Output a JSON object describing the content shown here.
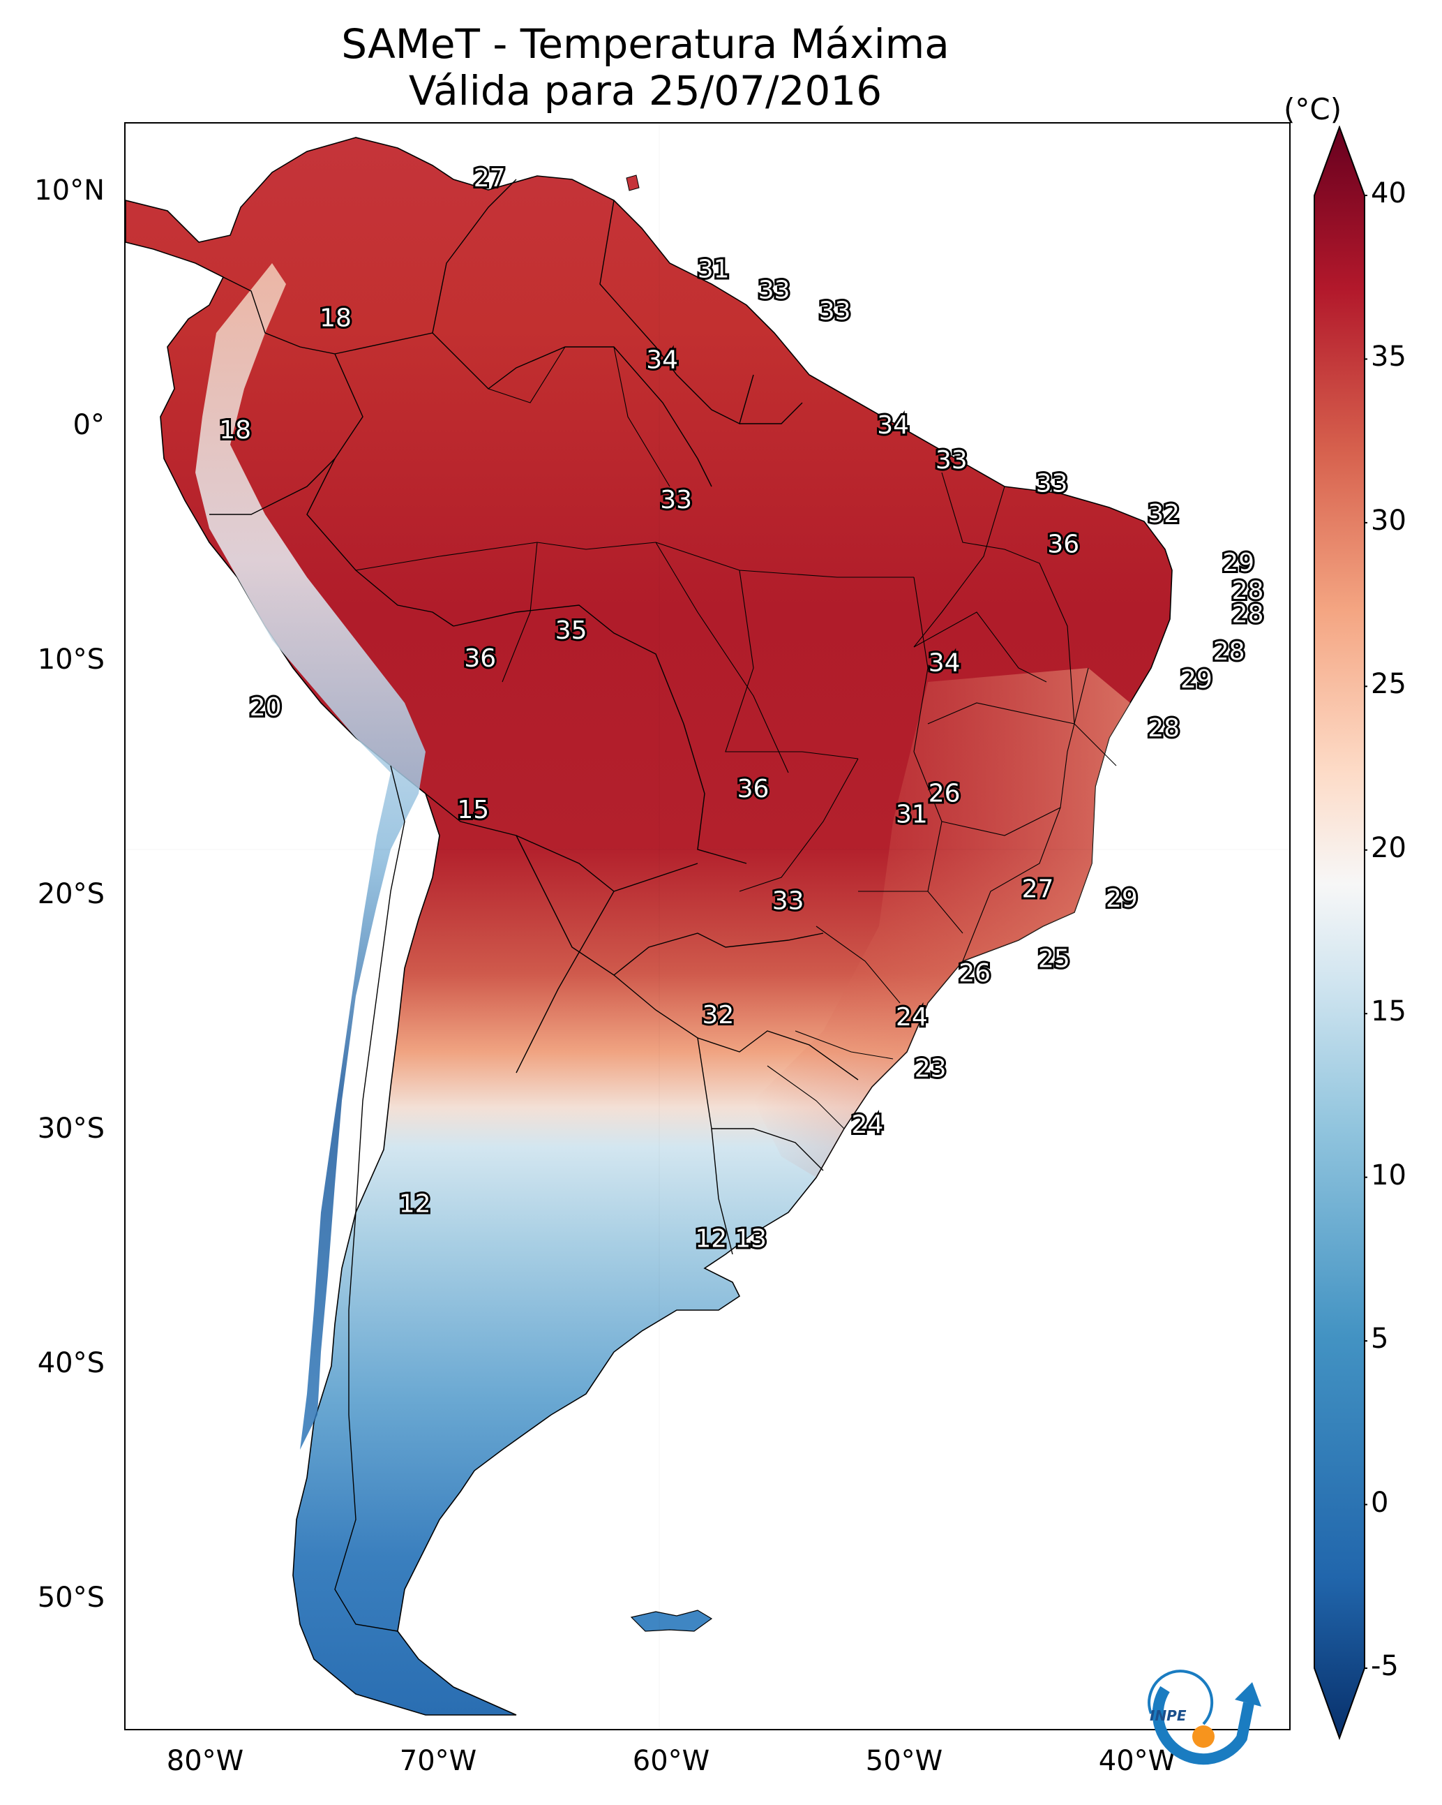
{
  "title": {
    "line1": "SAMeT - Temperatura Máxima",
    "line2": "Válida para 25/07/2016"
  },
  "map": {
    "region": "South America",
    "lon_range": [
      -83,
      -33
    ],
    "lat_range": [
      -56,
      13
    ],
    "lat_ticks": [
      "10°N",
      "0°",
      "10°S",
      "20°S",
      "30°S",
      "40°S",
      "50°S"
    ],
    "lon_ticks": [
      "80°W",
      "70°W",
      "60°W",
      "50°W",
      "40°W"
    ],
    "station_labels": [
      {
        "value": "27",
        "lon": -67.4,
        "lat": 10.6
      },
      {
        "value": "18",
        "lon": -74.0,
        "lat": 4.6
      },
      {
        "value": "31",
        "lon": -57.8,
        "lat": 6.7
      },
      {
        "value": "33",
        "lon": -55.2,
        "lat": 5.8
      },
      {
        "value": "33",
        "lon": -52.6,
        "lat": 4.9
      },
      {
        "value": "34",
        "lon": -60.0,
        "lat": 2.8
      },
      {
        "value": "18",
        "lon": -78.3,
        "lat": -0.2
      },
      {
        "value": "34",
        "lon": -50.1,
        "lat": 0.0
      },
      {
        "value": "33",
        "lon": -47.6,
        "lat": -1.5
      },
      {
        "value": "33",
        "lon": -43.3,
        "lat": -2.5
      },
      {
        "value": "33",
        "lon": -59.4,
        "lat": -3.2
      },
      {
        "value": "32",
        "lon": -38.5,
        "lat": -3.8
      },
      {
        "value": "36",
        "lon": -42.8,
        "lat": -5.1
      },
      {
        "value": "29",
        "lon": -35.3,
        "lat": -5.9
      },
      {
        "value": "28",
        "lon": -34.9,
        "lat": -7.1
      },
      {
        "value": "28",
        "lon": -34.9,
        "lat": -8.1
      },
      {
        "value": "35",
        "lon": -63.9,
        "lat": -8.8
      },
      {
        "value": "36",
        "lon": -67.8,
        "lat": -10.0
      },
      {
        "value": "34",
        "lon": -47.9,
        "lat": -10.2
      },
      {
        "value": "28",
        "lon": -35.7,
        "lat": -9.7
      },
      {
        "value": "29",
        "lon": -37.1,
        "lat": -10.9
      },
      {
        "value": "20",
        "lon": -77.0,
        "lat": -12.1
      },
      {
        "value": "28",
        "lon": -38.5,
        "lat": -13.0
      },
      {
        "value": "36",
        "lon": -56.1,
        "lat": -15.6
      },
      {
        "value": "26",
        "lon": -47.9,
        "lat": -15.8
      },
      {
        "value": "15",
        "lon": -68.1,
        "lat": -16.5
      },
      {
        "value": "31",
        "lon": -49.3,
        "lat": -16.7
      },
      {
        "value": "27",
        "lon": -43.9,
        "lat": -19.9
      },
      {
        "value": "29",
        "lon": -40.3,
        "lat": -20.3
      },
      {
        "value": "33",
        "lon": -54.6,
        "lat": -20.4
      },
      {
        "value": "25",
        "lon": -43.2,
        "lat": -22.9
      },
      {
        "value": "26",
        "lon": -46.6,
        "lat": -23.5
      },
      {
        "value": "32",
        "lon": -57.6,
        "lat": -25.3
      },
      {
        "value": "24",
        "lon": -49.3,
        "lat": -25.4
      },
      {
        "value": "23",
        "lon": -48.5,
        "lat": -27.6
      },
      {
        "value": "24",
        "lon": -51.2,
        "lat": -30.0
      },
      {
        "value": "12",
        "lon": -70.6,
        "lat": -33.4
      },
      {
        "value": "12",
        "lon": -57.9,
        "lat": -34.9
      },
      {
        "value": "13",
        "lon": -56.2,
        "lat": -34.9
      }
    ]
  },
  "colorbar": {
    "unit": "(°C)",
    "min": -5,
    "max": 40,
    "ticks": [
      "40",
      "35",
      "30",
      "25",
      "20",
      "15",
      "10",
      "5",
      "0",
      "-5"
    ],
    "colors": [
      "#053061",
      "#2166ac",
      "#4393c3",
      "#92c5de",
      "#d1e5f0",
      "#f7f7f7",
      "#fddbc7",
      "#f4a582",
      "#d6604d",
      "#b2182b",
      "#67001f"
    ]
  },
  "logo": {
    "text": "INPE",
    "colors": {
      "arc": "#1a7cc1",
      "dot": "#f7941d"
    }
  },
  "colors": {
    "land_hot": "#b2182b",
    "land_warm": "#d6604d",
    "land_mild": "#f4a582",
    "land_cool": "#d1e5f0",
    "land_cold": "#4393c3",
    "land_colder": "#2166ac"
  }
}
